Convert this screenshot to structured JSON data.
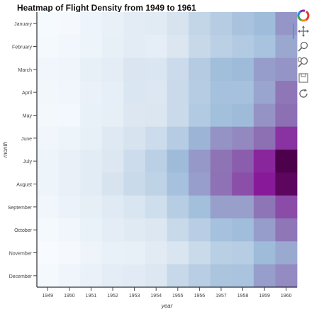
{
  "chart_data": {
    "type": "heatmap",
    "title": "Heatmap of Flight Density from 1949 to 1961",
    "xlabel": "year",
    "ylabel": "month",
    "x": [
      "1949",
      "1950",
      "1951",
      "1952",
      "1953",
      "1954",
      "1955",
      "1956",
      "1957",
      "1958",
      "1959",
      "1960"
    ],
    "y": [
      "January",
      "February",
      "March",
      "April",
      "May",
      "June",
      "July",
      "August",
      "September",
      "October",
      "November",
      "December"
    ],
    "values": [
      [
        112,
        115,
        145,
        171,
        196,
        204,
        242,
        284,
        315,
        340,
        360,
        417
      ],
      [
        118,
        126,
        150,
        180,
        196,
        188,
        233,
        277,
        301,
        318,
        342,
        391
      ],
      [
        132,
        141,
        178,
        193,
        236,
        235,
        267,
        317,
        356,
        362,
        406,
        419
      ],
      [
        129,
        135,
        163,
        181,
        235,
        227,
        269,
        313,
        348,
        348,
        396,
        461
      ],
      [
        121,
        125,
        172,
        183,
        229,
        234,
        270,
        318,
        355,
        363,
        420,
        472
      ],
      [
        135,
        149,
        178,
        218,
        243,
        264,
        315,
        374,
        422,
        435,
        472,
        535
      ],
      [
        148,
        170,
        199,
        230,
        264,
        302,
        364,
        413,
        465,
        491,
        548,
        622
      ],
      [
        148,
        170,
        199,
        242,
        272,
        293,
        347,
        405,
        467,
        505,
        559,
        606
      ],
      [
        136,
        158,
        184,
        209,
        237,
        259,
        312,
        355,
        404,
        404,
        463,
        508
      ],
      [
        119,
        133,
        162,
        191,
        211,
        229,
        274,
        306,
        347,
        359,
        407,
        461
      ],
      [
        104,
        114,
        146,
        172,
        180,
        203,
        237,
        271,
        305,
        310,
        362,
        390
      ],
      [
        118,
        140,
        166,
        194,
        201,
        229,
        278,
        306,
        336,
        337,
        405,
        432
      ]
    ],
    "color_low": "#f7fbff",
    "color_mid": "#9ebcda",
    "color_high": "#4d004b"
  },
  "toolbar": {
    "icons": [
      "bokeh-logo-icon",
      "pan-icon",
      "box-zoom-icon",
      "wheel-zoom-icon",
      "save-icon",
      "reset-icon"
    ],
    "active": "pan-icon"
  }
}
